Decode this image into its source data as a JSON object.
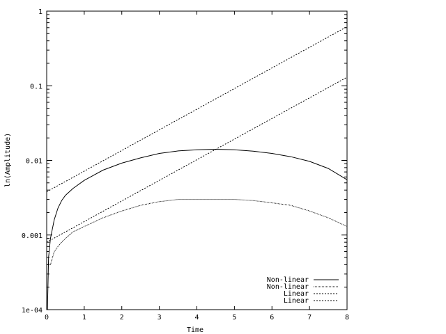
{
  "chart_data": {
    "type": "line",
    "xlabel": "Time",
    "ylabel": "ln(Amplitude)",
    "xlim": [
      0,
      8
    ],
    "ylim": [
      0.0001,
      1
    ],
    "yscale": "log",
    "grid": false,
    "legend_position": "bottom-right",
    "x_ticks": [
      {
        "value": 0,
        "label": "0"
      },
      {
        "value": 1,
        "label": "1"
      },
      {
        "value": 2,
        "label": "2"
      },
      {
        "value": 3,
        "label": "3"
      },
      {
        "value": 4,
        "label": "4"
      },
      {
        "value": 5,
        "label": "5"
      },
      {
        "value": 6,
        "label": "6"
      },
      {
        "value": 7,
        "label": "7"
      },
      {
        "value": 8,
        "label": "8"
      }
    ],
    "y_ticks": [
      {
        "value": 0.0001,
        "label": "1e-04"
      },
      {
        "value": 0.001,
        "label": "0.001"
      },
      {
        "value": 0.01,
        "label": "0.01"
      },
      {
        "value": 0.1,
        "label": "0.1"
      },
      {
        "value": 1,
        "label": "1"
      }
    ],
    "series": [
      {
        "name": "Non-linear",
        "style": "solid",
        "x": [
          0.02,
          0.05,
          0.1,
          0.2,
          0.3,
          0.4,
          0.5,
          0.7,
          1.0,
          1.5,
          2.0,
          2.5,
          3.0,
          3.5,
          4.0,
          4.5,
          5.0,
          5.5,
          6.0,
          6.5,
          7.0,
          7.5,
          8.0
        ],
        "y": [
          0.0001,
          0.0005,
          0.0009,
          0.0016,
          0.0023,
          0.0029,
          0.0034,
          0.0042,
          0.0054,
          0.0074,
          0.0092,
          0.0108,
          0.0124,
          0.0134,
          0.0139,
          0.0141,
          0.0139,
          0.0133,
          0.0124,
          0.0112,
          0.0097,
          0.0078,
          0.0055
        ]
      },
      {
        "name": "Non-linear",
        "style": "dotted",
        "x": [
          0.02,
          0.05,
          0.1,
          0.2,
          0.3,
          0.4,
          0.5,
          0.7,
          1.0,
          1.5,
          2.0,
          2.5,
          3.0,
          3.5,
          4.0,
          4.5,
          5.0,
          5.5,
          6.0,
          6.5,
          7.0,
          7.5,
          8.0
        ],
        "y": [
          0.0004,
          0.0004,
          0.0004,
          0.0006,
          0.0007,
          0.0008,
          0.0009,
          0.0011,
          0.0013,
          0.0017,
          0.0021,
          0.0025,
          0.0028,
          0.003,
          0.003,
          0.003,
          0.003,
          0.0029,
          0.0027,
          0.0025,
          0.0021,
          0.0017,
          0.0013
        ]
      },
      {
        "name": "Linear",
        "style": "dashed",
        "x": [
          0,
          8
        ],
        "y": [
          0.0038,
          0.62
        ]
      },
      {
        "name": "Linear",
        "style": "dashed-fine",
        "x": [
          0,
          8
        ],
        "y": [
          0.0008,
          0.13
        ]
      }
    ]
  }
}
